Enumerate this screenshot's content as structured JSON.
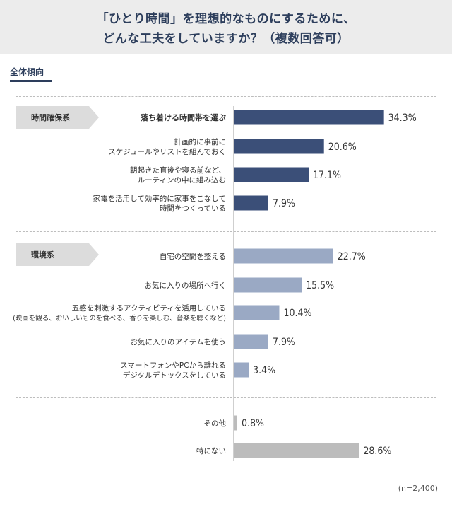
{
  "header": {
    "title_line1": "「ひとり時間」を理想的なものにするために、",
    "title_line2": "どんな工夫をしていますか？（複数回答可）"
  },
  "subtitle": "全体傾向",
  "groups": [
    {
      "label": "時間確保系"
    },
    {
      "label": "環境系"
    }
  ],
  "note": "(n=2,400)",
  "colors": {
    "group1": "#3b4f78",
    "group2": "#9aa9c4",
    "other": "#bcbcbc"
  },
  "chart_data": {
    "type": "bar",
    "orientation": "horizontal",
    "unit": "%",
    "items": [
      {
        "label_lines": [
          "落ち着ける時間帯を選ぶ"
        ],
        "value": 34.3,
        "value_label": "34.3%",
        "group": 0,
        "bold": true
      },
      {
        "label_lines": [
          "計画的に事前に",
          "スケジュールやリストを組んでおく"
        ],
        "value": 20.6,
        "value_label": "20.6%",
        "group": 0
      },
      {
        "label_lines": [
          "朝起きた直後や寝る前など、",
          "ルーティンの中に組み込む"
        ],
        "value": 17.1,
        "value_label": "17.1%",
        "group": 0
      },
      {
        "label_lines": [
          "家電を活用して効率的に家事をこなして",
          "時間をつくっている"
        ],
        "value": 7.9,
        "value_label": "7.9%",
        "group": 0
      },
      {
        "label_lines": [
          "自宅の空間を整える"
        ],
        "value": 22.7,
        "value_label": "22.7%",
        "group": 1
      },
      {
        "label_lines": [
          "お気に入りの場所へ行く"
        ],
        "value": 15.5,
        "value_label": "15.5%",
        "group": 1
      },
      {
        "label_lines": [
          "五感を刺激するアクティビティを活用している",
          "(映画を観る、おいしいものを食べる、香りを楽しむ、音楽を聴くなど)"
        ],
        "value": 10.4,
        "value_label": "10.4%",
        "group": 1
      },
      {
        "label_lines": [
          "お気に入りのアイテムを使う"
        ],
        "value": 7.9,
        "value_label": "7.9%",
        "group": 1
      },
      {
        "label_lines": [
          "スマートフォンやPCから離れる",
          "デジタルデトックスをしている"
        ],
        "value": 3.4,
        "value_label": "3.4%",
        "group": 1
      },
      {
        "label_lines": [
          "その他"
        ],
        "value": 0.8,
        "value_label": "0.8%",
        "group": 2
      },
      {
        "label_lines": [
          "特にない"
        ],
        "value": 28.6,
        "value_label": "28.6%",
        "group": 2
      }
    ]
  }
}
